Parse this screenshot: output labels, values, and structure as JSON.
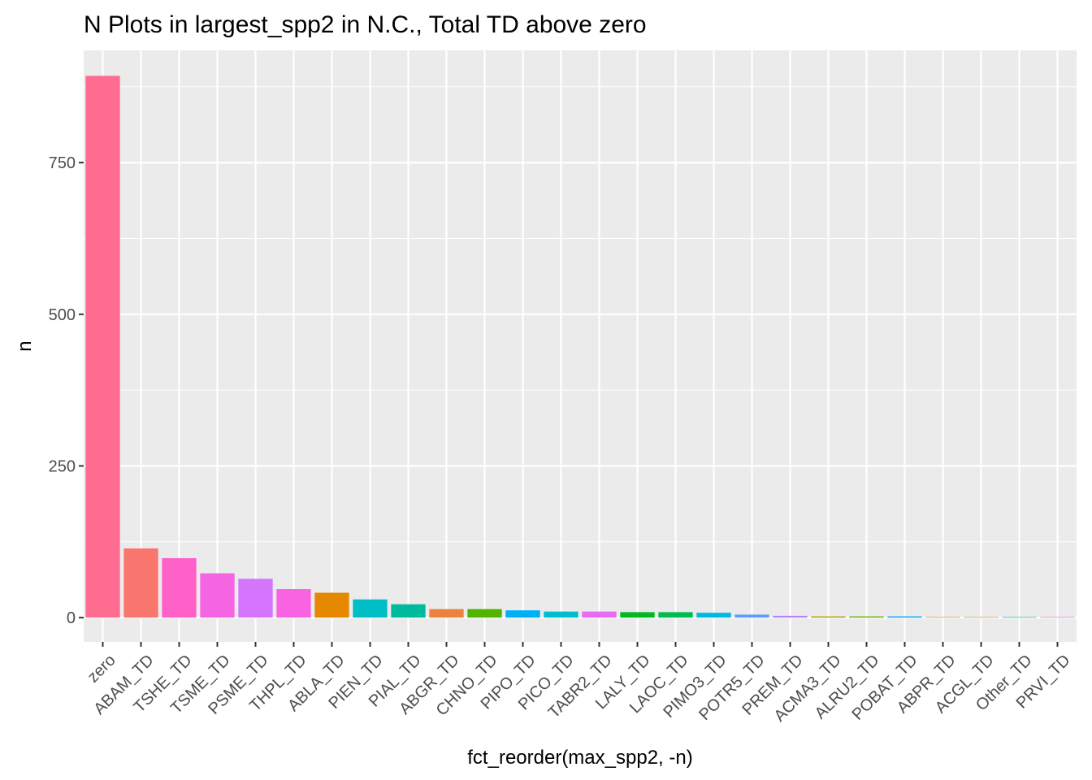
{
  "chart_data": {
    "type": "bar",
    "title": "N Plots in largest_spp2 in N.C., Total TD above zero",
    "xlabel": "fct_reorder(max_spp2, -n)",
    "ylabel": "n",
    "ylim": [
      -40,
      935
    ],
    "yticks": [
      0,
      250,
      500,
      750
    ],
    "ytick_labels": [
      "0",
      "250",
      "500",
      "750"
    ],
    "grid": true,
    "legend": "none",
    "categories": [
      "zero",
      "ABAM_TD",
      "TSHE_TD",
      "TSME_TD",
      "PSME_TD",
      "THPL_TD",
      "ABLA_TD",
      "PIEN_TD",
      "PIAL_TD",
      "ABGR_TD",
      "CHNO_TD",
      "PIPO_TD",
      "PICO_TD",
      "TABR2_TD",
      "LALY_TD",
      "LAOC_TD",
      "PIMO3_TD",
      "POTR5_TD",
      "PREM_TD",
      "ACMA3_TD",
      "ALRU2_TD",
      "POBAT_TD",
      "ABPR_TD",
      "ACGL_TD",
      "Other_TD",
      "PRVI_TD"
    ],
    "values": [
      893,
      114,
      98,
      73,
      64,
      47,
      41,
      30,
      22,
      14,
      14,
      12,
      10,
      10,
      9,
      9,
      8,
      5,
      3,
      2,
      2,
      2,
      1,
      1,
      1,
      1
    ],
    "colors": [
      "#FF6C91",
      "#F8766D",
      "#FF61C9",
      "#F564E3",
      "#D575FE",
      "#F763E0",
      "#E58700",
      "#00BFC4",
      "#00BA9E",
      "#ED813E",
      "#53B400",
      "#00B0F6",
      "#00BDD0",
      "#E76BF3",
      "#00B81F",
      "#00BB4E",
      "#00B9E3",
      "#619CFF",
      "#B983FF",
      "#A3A500",
      "#6BB100",
      "#00A5FF",
      "#DE8C00",
      "#BB9D00",
      "#00C0AF",
      "#FD61D1"
    ],
    "panel_background": "#EBEBEB",
    "grid_color": "#FFFFFF"
  }
}
